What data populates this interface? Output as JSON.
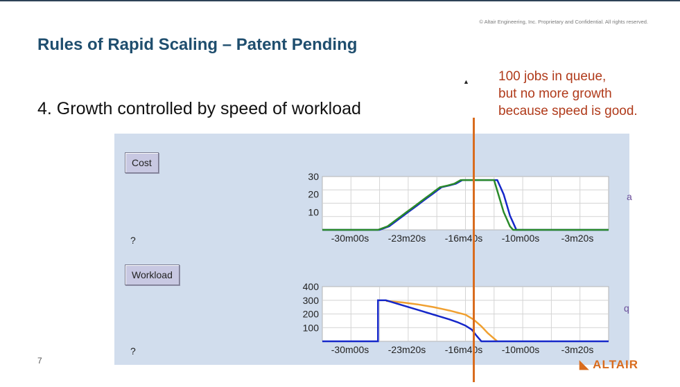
{
  "slide": {
    "title": "Rules of Rapid Scaling – Patent Pending",
    "copyright": "© Altair Engineering, Inc. Proprietary and Confidential. All rights reserved.",
    "point": "4. Growth controlled by speed of workload",
    "callout": [
      "100 jobs in queue,",
      "but no more growth",
      "because speed is good."
    ],
    "page_number": "7",
    "logo_text": "ALTAIR",
    "marker_color": "#d96c1e"
  },
  "panel": {
    "cost_button": "Cost",
    "workload_button": "Workload",
    "help_mark": "?",
    "edge_glyph_top": "a",
    "edge_glyph_bottom": "q"
  },
  "colors": {
    "title": "#1f4e6e",
    "callout": "#b03a1a",
    "panel_bg": "#d1dded",
    "series_blue": "#1527c9",
    "series_green": "#2a8a2a",
    "series_orange": "#f0a030",
    "marker": "#d96c1e"
  },
  "chart_data": [
    {
      "type": "line",
      "name": "cost",
      "x_tick_labels": [
        "-30m00s",
        "-23m20s",
        "-16m40s",
        "-10m00s",
        "-3m20s"
      ],
      "y_tick_labels": [
        "30",
        "20",
        "10"
      ],
      "ylim": [
        0,
        30
      ],
      "xlim": [
        -1800,
        0
      ],
      "grid": true,
      "series": [
        {
          "color": "#1527c9",
          "points": [
            [
              -1800,
              0
            ],
            [
              -1440,
              0
            ],
            [
              -1380,
              2
            ],
            [
              -1350,
              4
            ],
            [
              -1320,
              6
            ],
            [
              -1290,
              8
            ],
            [
              -1260,
              10
            ],
            [
              -1230,
              12
            ],
            [
              -1200,
              14
            ],
            [
              -1170,
              16
            ],
            [
              -1140,
              18
            ],
            [
              -1110,
              20
            ],
            [
              -1080,
              22
            ],
            [
              -1050,
              24
            ],
            [
              -1000,
              25
            ],
            [
              -960,
              26
            ],
            [
              -920,
              28
            ],
            [
              -700,
              28
            ],
            [
              -680,
              24
            ],
            [
              -660,
              20
            ],
            [
              -640,
              14
            ],
            [
              -620,
              8
            ],
            [
              -600,
              4
            ],
            [
              -580,
              0
            ],
            [
              0,
              0
            ]
          ]
        },
        {
          "color": "#2a8a2a",
          "points": [
            [
              -1800,
              0
            ],
            [
              -1450,
              0
            ],
            [
              -1390,
              2
            ],
            [
              -1360,
              4
            ],
            [
              -1330,
              6
            ],
            [
              -1300,
              8
            ],
            [
              -1270,
              10
            ],
            [
              -1240,
              12
            ],
            [
              -1210,
              14
            ],
            [
              -1180,
              16
            ],
            [
              -1150,
              18
            ],
            [
              -1120,
              20
            ],
            [
              -1090,
              22
            ],
            [
              -1060,
              24
            ],
            [
              -1010,
              25
            ],
            [
              -970,
              26
            ],
            [
              -930,
              28
            ],
            [
              -720,
              28
            ],
            [
              -700,
              22
            ],
            [
              -680,
              16
            ],
            [
              -660,
              10
            ],
            [
              -640,
              6
            ],
            [
              -620,
              2
            ],
            [
              -600,
              0
            ],
            [
              0,
              0
            ]
          ]
        }
      ]
    },
    {
      "type": "line",
      "name": "workload",
      "x_tick_labels": [
        "-30m00s",
        "-23m20s",
        "-16m40s",
        "-10m00s",
        "-3m20s"
      ],
      "y_tick_labels": [
        "400",
        "300",
        "200",
        "100"
      ],
      "ylim": [
        0,
        400
      ],
      "xlim": [
        -1800,
        0
      ],
      "grid": true,
      "series": [
        {
          "color": "#f0a030",
          "points": [
            [
              -1400,
              295
            ],
            [
              -1300,
              285
            ],
            [
              -1200,
              270
            ],
            [
              -1100,
              250
            ],
            [
              -1000,
              225
            ],
            [
              -900,
              195
            ],
            [
              -850,
              160
            ],
            [
              -800,
              110
            ],
            [
              -760,
              60
            ],
            [
              -720,
              20
            ],
            [
              -700,
              0
            ]
          ]
        },
        {
          "color": "#1527c9",
          "points": [
            [
              -1800,
              0
            ],
            [
              -1450,
              0
            ],
            [
              -1450,
              300
            ],
            [
              -1400,
              300
            ],
            [
              -1300,
              265
            ],
            [
              -1200,
              230
            ],
            [
              -1100,
              195
            ],
            [
              -1000,
              160
            ],
            [
              -950,
              140
            ],
            [
              -900,
              115
            ],
            [
              -860,
              85
            ],
            [
              -830,
              40
            ],
            [
              -800,
              0
            ],
            [
              0,
              0
            ]
          ]
        }
      ]
    }
  ]
}
